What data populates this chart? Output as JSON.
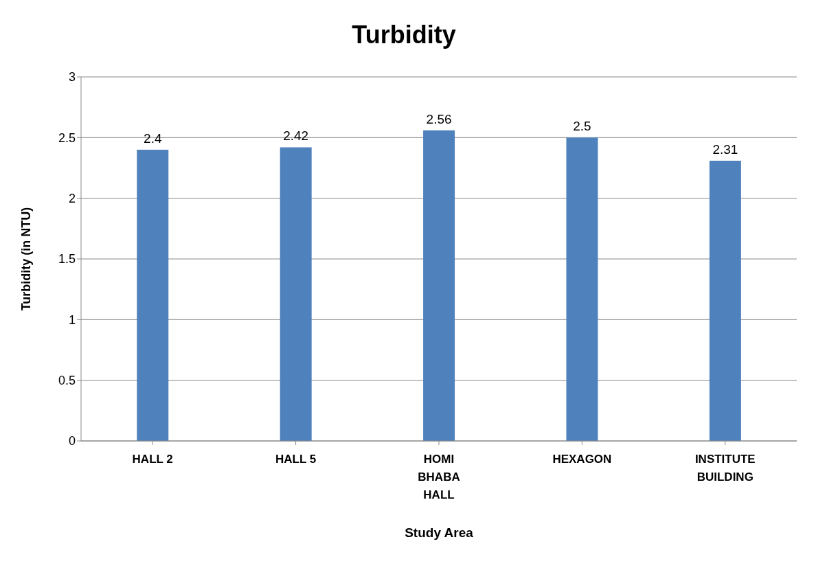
{
  "chart_data": {
    "type": "bar",
    "title": "Turbidity",
    "xlabel": "Study Area",
    "ylabel": "Turbidity (in NTU)",
    "categories": [
      "HALL 2",
      "HALL 5",
      "HOMI BHABA HALL",
      "HEXAGON",
      "INSTITUTE BUILDING"
    ],
    "values": [
      2.4,
      2.42,
      2.56,
      2.5,
      2.31
    ],
    "color": "#4f81bd",
    "ylim": [
      0,
      3
    ],
    "yticks": [
      0,
      0.5,
      1,
      1.5,
      2,
      2.5,
      3
    ],
    "grid": "y",
    "data_labels": true
  }
}
